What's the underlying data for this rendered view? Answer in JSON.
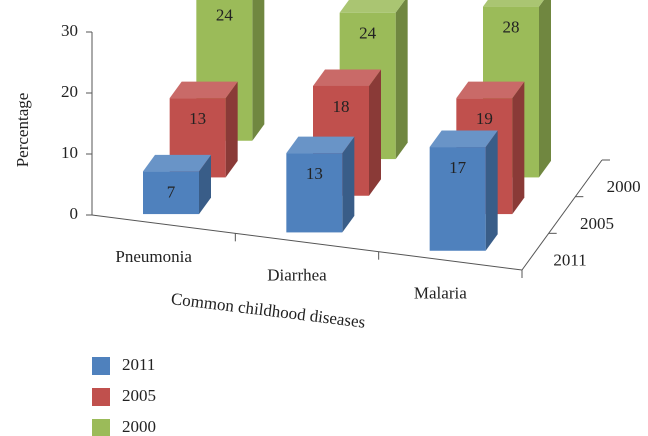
{
  "chart_data": {
    "type": "bar3d",
    "x_label": "Common childhood diseases",
    "y_label": "Percentage",
    "categories": [
      "Pneumonia",
      "Diarrhea",
      "Malaria"
    ],
    "series": [
      {
        "name": "2011",
        "color": "#4f81bd",
        "values": [
          7,
          13,
          17
        ]
      },
      {
        "name": "2005",
        "color": "#c0504d",
        "values": [
          13,
          18,
          19
        ]
      },
      {
        "name": "2000",
        "color": "#9bbb59",
        "values": [
          24,
          24,
          28
        ]
      }
    ],
    "ylim": [
      0,
      30
    ],
    "yticks": [
      0,
      10,
      20,
      30
    ]
  }
}
